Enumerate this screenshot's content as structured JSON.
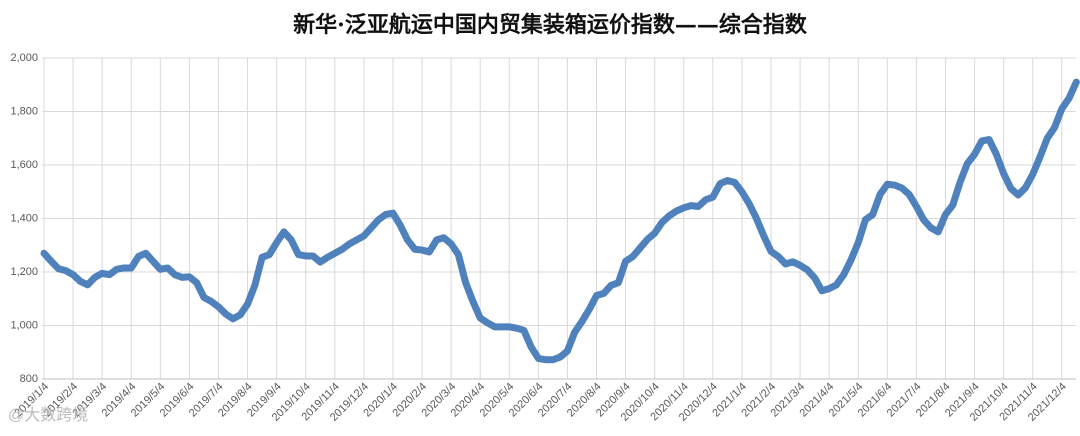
{
  "chart_data": {
    "type": "line",
    "title": "新华·泛亚航运中国内贸集装箱运价指数——综合指数",
    "watermark": "@大数跨境",
    "categories": [
      "2019/1/4",
      null,
      null,
      null,
      "2019/2/4",
      null,
      null,
      null,
      "2019/3/4",
      null,
      null,
      null,
      "2019/4/4",
      null,
      null,
      null,
      "2019/5/4",
      null,
      null,
      null,
      "2019/6/4",
      null,
      null,
      null,
      "2019/7/4",
      null,
      null,
      null,
      "2019/8/4",
      null,
      null,
      null,
      "2019/9/4",
      null,
      null,
      null,
      "2019/10/4",
      null,
      null,
      null,
      "2019/11/4",
      null,
      null,
      null,
      "2019/12/4",
      null,
      null,
      null,
      "2020/1/4",
      null,
      null,
      null,
      "2020/2/4",
      null,
      null,
      null,
      "2020/3/4",
      null,
      null,
      null,
      "2020/4/4",
      null,
      null,
      null,
      "2020/5/4",
      null,
      null,
      null,
      "2020/6/4",
      null,
      null,
      null,
      "2020/7/4",
      null,
      null,
      null,
      "2020/8/4",
      null,
      null,
      null,
      "2020/9/4",
      null,
      null,
      null,
      "2020/10/4",
      null,
      null,
      null,
      "2020/11/4",
      null,
      null,
      null,
      "2020/12/4",
      null,
      null,
      null,
      "2021/1/4",
      null,
      null,
      null,
      "2021/2/4",
      null,
      null,
      null,
      "2021/3/4",
      null,
      null,
      null,
      "2021/4/4",
      null,
      null,
      null,
      "2021/5/4",
      null,
      null,
      null,
      "2021/6/4",
      null,
      null,
      null,
      "2021/7/4",
      null,
      null,
      null,
      "2021/8/4",
      null,
      null,
      null,
      "2021/9/4",
      null,
      null,
      null,
      "2021/10/4",
      null,
      null,
      null,
      "2021/11/4",
      null,
      null,
      null,
      "2021/12/4",
      null,
      null
    ],
    "series": [
      {
        "name": "综合指数",
        "color": "#4f81bd",
        "values": [
          1270,
          1240,
          1212,
          1205,
          1190,
          1165,
          1152,
          1180,
          1195,
          1190,
          1210,
          1215,
          1215,
          1258,
          1270,
          1240,
          1210,
          1215,
          1190,
          1180,
          1182,
          1160,
          1105,
          1090,
          1070,
          1043,
          1025,
          1040,
          1080,
          1150,
          1255,
          1265,
          1310,
          1350,
          1320,
          1265,
          1260,
          1260,
          1237,
          1255,
          1270,
          1285,
          1305,
          1320,
          1335,
          1365,
          1395,
          1415,
          1420,
          1375,
          1320,
          1285,
          1282,
          1275,
          1320,
          1328,
          1305,
          1265,
          1160,
          1090,
          1028,
          1010,
          995,
          995,
          995,
          990,
          982,
          920,
          877,
          872,
          872,
          882,
          905,
          975,
          1015,
          1060,
          1112,
          1120,
          1150,
          1160,
          1240,
          1258,
          1290,
          1322,
          1345,
          1385,
          1410,
          1428,
          1440,
          1448,
          1445,
          1470,
          1480,
          1530,
          1542,
          1535,
          1500,
          1455,
          1400,
          1335,
          1277,
          1258,
          1230,
          1238,
          1225,
          1208,
          1178,
          1130,
          1138,
          1152,
          1190,
          1245,
          1310,
          1396,
          1415,
          1490,
          1528,
          1525,
          1514,
          1490,
          1445,
          1395,
          1365,
          1350,
          1415,
          1450,
          1535,
          1605,
          1640,
          1690,
          1695,
          1640,
          1568,
          1512,
          1488,
          1515,
          1565,
          1630,
          1700,
          1740,
          1810,
          1850,
          1910
        ]
      }
    ],
    "ylim": [
      800,
      2000
    ],
    "yticks": [
      800,
      {
        "value": 1000,
        "label": "1,000"
      },
      {
        "value": 1200,
        "label": "1,200"
      },
      {
        "value": 1400,
        "label": "1,400"
      },
      {
        "value": 1600,
        "label": "1,600"
      },
      {
        "value": 1800,
        "label": "1,800"
      },
      {
        "value": 2000,
        "label": "2,000"
      }
    ],
    "grid": true
  }
}
